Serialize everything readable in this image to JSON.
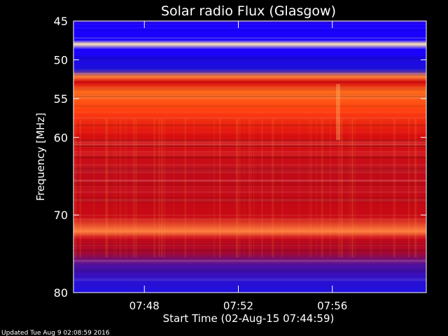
{
  "chart_data": {
    "type": "heatmap",
    "title": "Solar radio Flux (Glasgow)",
    "xlabel": "Start Time (02-Aug-15 07:44:59)",
    "ylabel": "Frequency [MHz]",
    "x_ticks": [
      "07:48",
      "07:52",
      "07:56"
    ],
    "y_ticks": [
      "45",
      "50",
      "55",
      "60",
      "70",
      "80"
    ],
    "x_range": [
      "07:44:59",
      "08:00:00"
    ],
    "y_range": [
      45,
      80
    ],
    "grid": false,
    "colormap": {
      "low": "#1a00ff",
      "mid": "#d40a10",
      "high": "#ffd060"
    }
  },
  "footer": {
    "updated": "Updated Tue Aug  9 02:08:59 2016"
  }
}
